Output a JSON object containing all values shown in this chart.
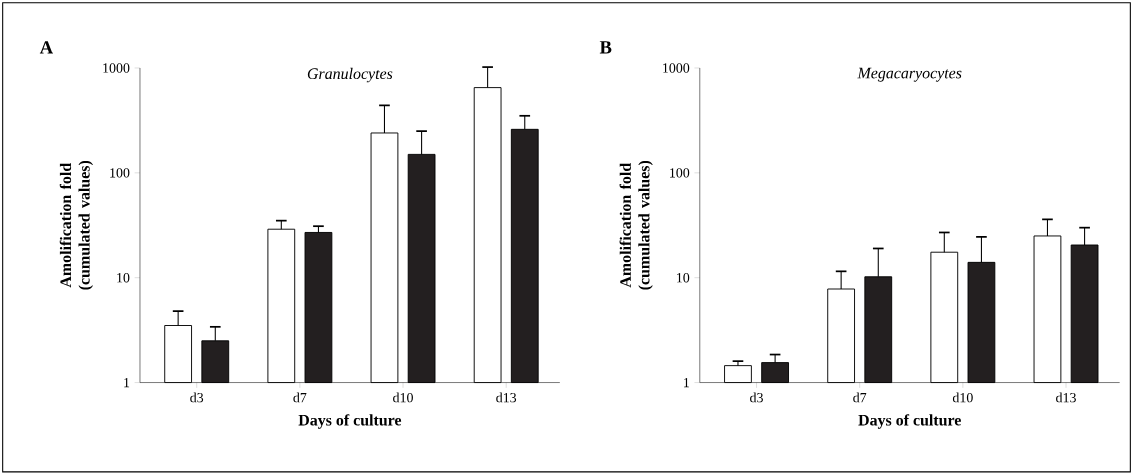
{
  "chart_data": [
    {
      "type": "bar",
      "title": "Granulocytes",
      "xlabel": "Days of culture",
      "ylabel": "Amolification fold (cumulated values)",
      "annotations": [
        "A"
      ],
      "categories": [
        "d3",
        "d7",
        "d10",
        "d13"
      ],
      "log": true,
      "ylim": [
        1,
        1000
      ],
      "yticks": [
        1,
        10,
        100,
        1000
      ],
      "series": [
        {
          "color": "#ffffff",
          "values": [
            3.5,
            29,
            240,
            650
          ],
          "errors": [
            [
              3.5,
              4.8
            ],
            [
              29,
              35
            ],
            [
              240,
              440
            ],
            [
              650,
              1020
            ]
          ]
        },
        {
          "color": "#231f20",
          "values": [
            2.5,
            27,
            150,
            260
          ],
          "errors": [
            [
              2.5,
              3.4
            ],
            [
              27,
              31
            ],
            [
              150,
              250
            ],
            [
              260,
              350
            ]
          ]
        }
      ]
    },
    {
      "type": "bar",
      "title": "Megacaryocytes",
      "xlabel": "Days of culture",
      "ylabel": "Amolification fold (cumulated values)",
      "annotations": [
        "B"
      ],
      "categories": [
        "d3",
        "d7",
        "d10",
        "d13"
      ],
      "log": true,
      "ylim": [
        1,
        1000
      ],
      "yticks": [
        1,
        10,
        100,
        1000
      ],
      "series": [
        {
          "color": "#ffffff",
          "values": [
            1.45,
            7.8,
            17.5,
            25
          ],
          "errors": [
            [
              1.45,
              1.6
            ],
            [
              7.8,
              11.5
            ],
            [
              17.5,
              27
            ],
            [
              25,
              36
            ]
          ]
        },
        {
          "color": "#231f20",
          "values": [
            1.55,
            10.2,
            14,
            20.5
          ],
          "errors": [
            [
              1.55,
              1.85
            ],
            [
              10.2,
              19
            ],
            [
              14,
              24.5
            ],
            [
              20.5,
              30
            ]
          ]
        }
      ]
    }
  ]
}
